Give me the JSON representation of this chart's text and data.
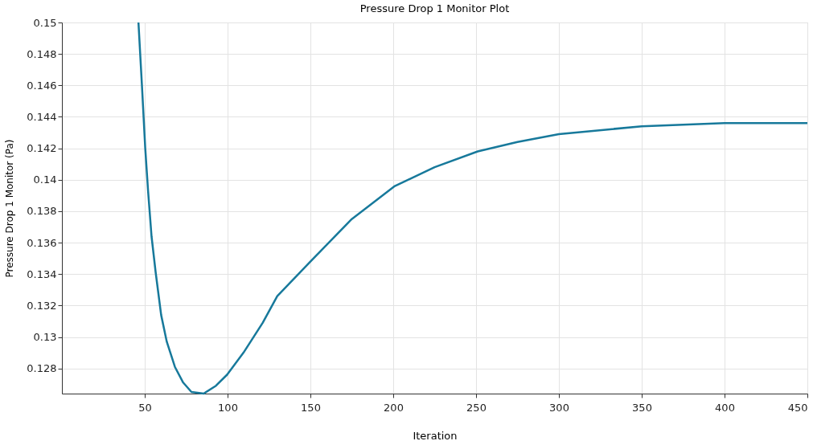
{
  "chart_data": {
    "type": "line",
    "title": "Pressure Drop 1 Monitor Plot",
    "xlabel": "Iteration",
    "ylabel": "Pressure Drop 1 Monitor (Pa)",
    "x": [
      46.2,
      48.3,
      50.3,
      52,
      54.1,
      56.6,
      59.9,
      63.3,
      68.2,
      73.2,
      78.2,
      85.6,
      93,
      99.7,
      109.6,
      121.2,
      130,
      150,
      175,
      201,
      225,
      251,
      275,
      300,
      350,
      400,
      450
    ],
    "series": [
      {
        "color": "#17799b",
        "values": [
          0.15,
          0.146,
          0.142,
          0.1393,
          0.1364,
          0.1341,
          0.1314,
          0.1297,
          0.1281,
          0.1271,
          0.1265,
          0.1264,
          0.1269,
          0.1276,
          0.129,
          0.1309,
          0.1326,
          0.1348,
          0.1375,
          0.1396,
          0.1408,
          0.1418,
          0.1424,
          0.1429,
          0.1434,
          0.1436,
          0.1436
        ]
      }
    ],
    "xlim": [
      0,
      450
    ],
    "ylim": [
      0.1264,
      0.15
    ],
    "xticks": [
      50,
      100,
      150,
      200,
      250,
      300,
      350,
      400,
      450
    ],
    "yticks": [
      0.128,
      0.13,
      0.132,
      0.134,
      0.136,
      0.138,
      0.14,
      0.142,
      0.144,
      0.146,
      0.148,
      0.15
    ],
    "grid": true,
    "legend": false,
    "marker": "none",
    "line_style": "solid"
  }
}
